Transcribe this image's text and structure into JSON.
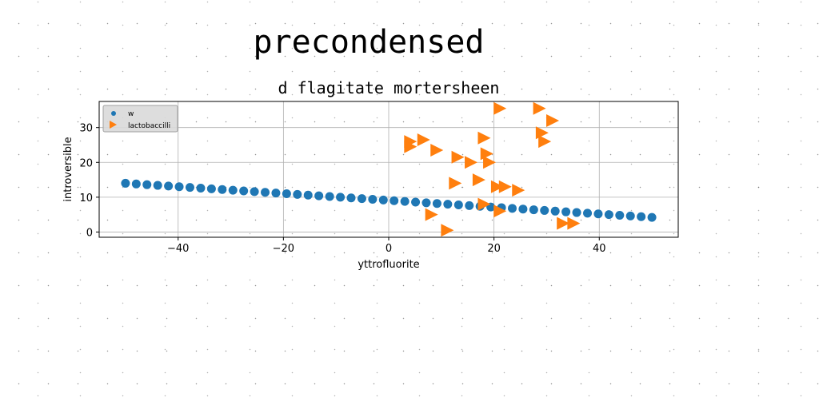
{
  "chart_data": {
    "type": "scatter",
    "suptitle": "precondensed",
    "title": "d flagitate mortersheen",
    "xlabel": "yttrofluorite",
    "ylabel": "introversible",
    "xlim": [
      -55,
      55
    ],
    "ylim": [
      -1.5,
      37.5
    ],
    "xticks": [
      -40,
      -20,
      0,
      20,
      40
    ],
    "yticks": [
      0,
      10,
      20,
      30
    ],
    "grid": true,
    "legend_position": "upper left",
    "series": [
      {
        "name": "w",
        "marker": "circle",
        "color": "#1f77b4",
        "x": [
          -50,
          -47.96,
          -45.92,
          -43.88,
          -41.84,
          -39.8,
          -37.76,
          -35.71,
          -33.67,
          -31.63,
          -29.59,
          -27.55,
          -25.51,
          -23.47,
          -21.43,
          -19.39,
          -17.35,
          -15.31,
          -13.27,
          -11.22,
          -9.18,
          -7.14,
          -5.1,
          -3.06,
          -1.02,
          1.02,
          3.06,
          5.1,
          7.14,
          9.18,
          11.22,
          13.27,
          15.31,
          17.35,
          19.39,
          21.43,
          23.47,
          25.51,
          27.55,
          29.59,
          31.63,
          33.67,
          35.71,
          37.76,
          39.8,
          41.84,
          43.88,
          45.92,
          47.96,
          50
        ],
        "y": [
          14.0,
          13.8,
          13.6,
          13.4,
          13.2,
          13.0,
          12.8,
          12.6,
          12.4,
          12.2,
          12.0,
          11.8,
          11.6,
          11.4,
          11.2,
          11.0,
          10.8,
          10.6,
          10.4,
          10.2,
          10.0,
          9.8,
          9.6,
          9.4,
          9.2,
          9.0,
          8.8,
          8.6,
          8.4,
          8.2,
          8.0,
          7.8,
          7.6,
          7.4,
          7.2,
          7.0,
          6.8,
          6.6,
          6.4,
          6.2,
          6.0,
          5.8,
          5.6,
          5.4,
          5.2,
          5.0,
          4.8,
          4.6,
          4.4,
          4.2
        ]
      },
      {
        "name": "lactobaccilli",
        "marker": "triangle-right",
        "color": "#ff7f0e",
        "x": [
          4,
          4,
          6.5,
          8,
          9,
          11,
          12.5,
          13,
          15.5,
          17,
          18,
          18,
          18.5,
          19,
          20.5,
          21,
          21,
          22,
          24.5,
          28.5,
          29,
          29.5,
          31,
          33,
          35
        ],
        "y": [
          26,
          24.5,
          26.5,
          5,
          23.5,
          0.5,
          14,
          21.5,
          20,
          15,
          27,
          8,
          22.5,
          20,
          13,
          35.5,
          6,
          13,
          12,
          35.5,
          28.5,
          26,
          32,
          2.5,
          2.5
        ]
      }
    ]
  }
}
